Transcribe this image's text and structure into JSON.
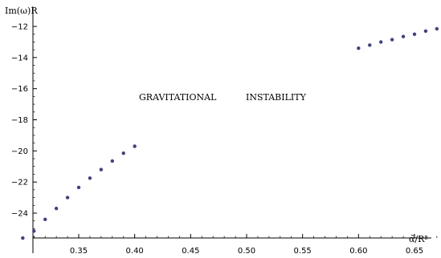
{
  "chart_data": {
    "type": "scatter",
    "title": "",
    "xlabel": "α̃/R²",
    "ylabel": "Im(ω)R",
    "xlim": [
      0.3,
      0.68
    ],
    "ylim": [
      -25.8,
      -11.5
    ],
    "x_ticks": [
      0.35,
      0.4,
      0.45,
      0.5,
      0.55,
      0.6,
      0.65
    ],
    "x_tick_labels": [
      "0.35",
      "0.40",
      "0.45",
      "0.50",
      "0.55",
      "0.60",
      "0.65"
    ],
    "y_ticks": [
      -12,
      -14,
      -16,
      -18,
      -20,
      -22,
      -24
    ],
    "y_tick_labels": [
      "−12",
      "−14",
      "−16",
      "−18",
      "−20",
      "−22",
      "−24"
    ],
    "grid": false,
    "annotations": [
      "GRAVITATIONAL",
      "INSTABILITY"
    ],
    "point_color": "#3f3f8f",
    "series": [
      {
        "x": [
          0.3,
          0.31,
          0.32,
          0.33,
          0.34,
          0.35,
          0.36,
          0.37,
          0.38,
          0.39,
          0.4
        ],
        "y": [
          -25.6,
          -25.15,
          -24.4,
          -23.7,
          -23.0,
          -22.35,
          -21.75,
          -21.2,
          -20.65,
          -20.15,
          -19.7
        ]
      },
      {
        "x": [
          0.6,
          0.61,
          0.62,
          0.63,
          0.64,
          0.65,
          0.66,
          0.67
        ],
        "y": [
          -13.4,
          -13.2,
          -13.0,
          -12.85,
          -12.65,
          -12.5,
          -12.3,
          -12.15
        ]
      }
    ]
  }
}
